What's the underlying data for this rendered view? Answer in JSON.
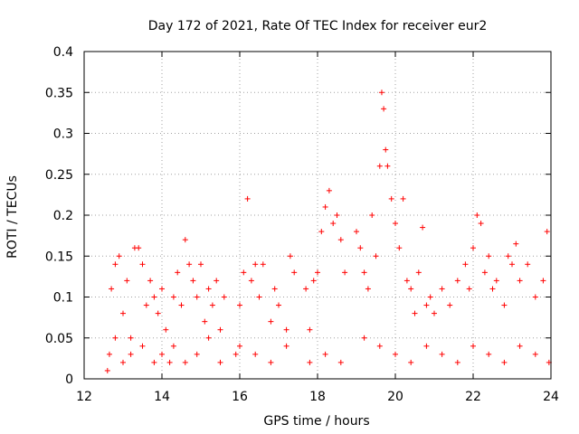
{
  "chart_data": {
    "type": "scatter",
    "title": "Day 172 of 2021, Rate Of TEC Index for receiver eur2",
    "xlabel": "GPS time / hours",
    "ylabel": "ROTI / TECUs",
    "xlim": [
      12,
      24
    ],
    "ylim": [
      0,
      0.4
    ],
    "xticks": [
      12,
      14,
      16,
      18,
      20,
      22,
      24
    ],
    "xtick_labels": [
      "12",
      "14",
      "16",
      "18",
      "20",
      "22",
      "24"
    ],
    "yticks": [
      0,
      0.05,
      0.1,
      0.15,
      0.2,
      0.25,
      0.3,
      0.35,
      0.4
    ],
    "ytick_labels": [
      "0",
      "0.05",
      "0.1",
      "0.15",
      "0.2",
      "0.25",
      "0.3",
      "0.35",
      "0.4"
    ],
    "grid": true,
    "marker": "+",
    "color": "#ff0000",
    "series": [
      {
        "name": "ROTI",
        "points": [
          [
            12.6,
            0.01
          ],
          [
            12.7,
            0.11
          ],
          [
            12.8,
            0.14
          ],
          [
            12.9,
            0.15
          ],
          [
            13.0,
            0.08
          ],
          [
            13.1,
            0.12
          ],
          [
            13.2,
            0.05
          ],
          [
            13.3,
            0.16
          ],
          [
            13.4,
            0.16
          ],
          [
            13.5,
            0.14
          ],
          [
            13.6,
            0.09
          ],
          [
            13.7,
            0.12
          ],
          [
            13.8,
            0.1
          ],
          [
            13.9,
            0.08
          ],
          [
            14.0,
            0.11
          ],
          [
            14.1,
            0.06
          ],
          [
            14.2,
            0.02
          ],
          [
            14.3,
            0.1
          ],
          [
            14.4,
            0.13
          ],
          [
            14.5,
            0.09
          ],
          [
            14.6,
            0.17
          ],
          [
            14.7,
            0.14
          ],
          [
            14.8,
            0.12
          ],
          [
            14.9,
            0.1
          ],
          [
            15.0,
            0.14
          ],
          [
            15.1,
            0.07
          ],
          [
            15.2,
            0.11
          ],
          [
            15.3,
            0.09
          ],
          [
            15.4,
            0.12
          ],
          [
            15.5,
            0.06
          ],
          [
            15.6,
            0.1
          ],
          [
            15.9,
            0.03
          ],
          [
            16.0,
            0.09
          ],
          [
            16.1,
            0.13
          ],
          [
            16.2,
            0.22
          ],
          [
            16.3,
            0.12
          ],
          [
            16.4,
            0.14
          ],
          [
            16.5,
            0.1
          ],
          [
            16.6,
            0.14
          ],
          [
            16.8,
            0.07
          ],
          [
            16.9,
            0.11
          ],
          [
            17.0,
            0.09
          ],
          [
            17.2,
            0.06
          ],
          [
            17.3,
            0.15
          ],
          [
            17.4,
            0.13
          ],
          [
            17.7,
            0.11
          ],
          [
            17.8,
            0.06
          ],
          [
            17.9,
            0.12
          ],
          [
            18.0,
            0.13
          ],
          [
            18.1,
            0.18
          ],
          [
            18.2,
            0.21
          ],
          [
            18.3,
            0.23
          ],
          [
            18.4,
            0.19
          ],
          [
            18.5,
            0.2
          ],
          [
            18.6,
            0.17
          ],
          [
            18.7,
            0.13
          ],
          [
            19.0,
            0.18
          ],
          [
            19.1,
            0.16
          ],
          [
            19.2,
            0.13
          ],
          [
            19.3,
            0.11
          ],
          [
            19.4,
            0.2
          ],
          [
            19.5,
            0.15
          ],
          [
            19.6,
            0.26
          ],
          [
            19.65,
            0.35
          ],
          [
            19.7,
            0.33
          ],
          [
            19.75,
            0.28
          ],
          [
            19.8,
            0.26
          ],
          [
            19.9,
            0.22
          ],
          [
            20.0,
            0.19
          ],
          [
            20.1,
            0.16
          ],
          [
            20.2,
            0.22
          ],
          [
            20.3,
            0.12
          ],
          [
            20.4,
            0.11
          ],
          [
            20.5,
            0.08
          ],
          [
            20.6,
            0.13
          ],
          [
            20.7,
            0.185
          ],
          [
            20.8,
            0.09
          ],
          [
            20.9,
            0.1
          ],
          [
            21.0,
            0.08
          ],
          [
            21.2,
            0.11
          ],
          [
            21.4,
            0.09
          ],
          [
            21.6,
            0.12
          ],
          [
            21.8,
            0.14
          ],
          [
            21.9,
            0.11
          ],
          [
            22.0,
            0.16
          ],
          [
            22.1,
            0.2
          ],
          [
            22.2,
            0.19
          ],
          [
            22.3,
            0.13
          ],
          [
            22.4,
            0.15
          ],
          [
            22.5,
            0.11
          ],
          [
            22.6,
            0.12
          ],
          [
            22.8,
            0.09
          ],
          [
            22.9,
            0.15
          ],
          [
            23.0,
            0.14
          ],
          [
            23.1,
            0.165
          ],
          [
            23.2,
            0.12
          ],
          [
            23.4,
            0.14
          ],
          [
            23.6,
            0.1
          ],
          [
            23.8,
            0.12
          ],
          [
            23.9,
            0.18
          ],
          [
            12.65,
            0.03
          ],
          [
            12.8,
            0.05
          ],
          [
            13.0,
            0.02
          ],
          [
            13.2,
            0.03
          ],
          [
            13.5,
            0.04
          ],
          [
            13.8,
            0.02
          ],
          [
            14.0,
            0.03
          ],
          [
            14.3,
            0.04
          ],
          [
            14.6,
            0.02
          ],
          [
            14.9,
            0.03
          ],
          [
            15.2,
            0.05
          ],
          [
            15.5,
            0.02
          ],
          [
            16.0,
            0.04
          ],
          [
            16.4,
            0.03
          ],
          [
            16.8,
            0.02
          ],
          [
            17.2,
            0.04
          ],
          [
            17.8,
            0.02
          ],
          [
            18.2,
            0.03
          ],
          [
            18.6,
            0.02
          ],
          [
            19.2,
            0.05
          ],
          [
            19.6,
            0.04
          ],
          [
            20.0,
            0.03
          ],
          [
            20.4,
            0.02
          ],
          [
            20.8,
            0.04
          ],
          [
            21.2,
            0.03
          ],
          [
            21.6,
            0.02
          ],
          [
            22.0,
            0.04
          ],
          [
            22.4,
            0.03
          ],
          [
            22.8,
            0.02
          ],
          [
            23.2,
            0.04
          ],
          [
            23.6,
            0.03
          ],
          [
            23.95,
            0.02
          ]
        ]
      }
    ]
  }
}
